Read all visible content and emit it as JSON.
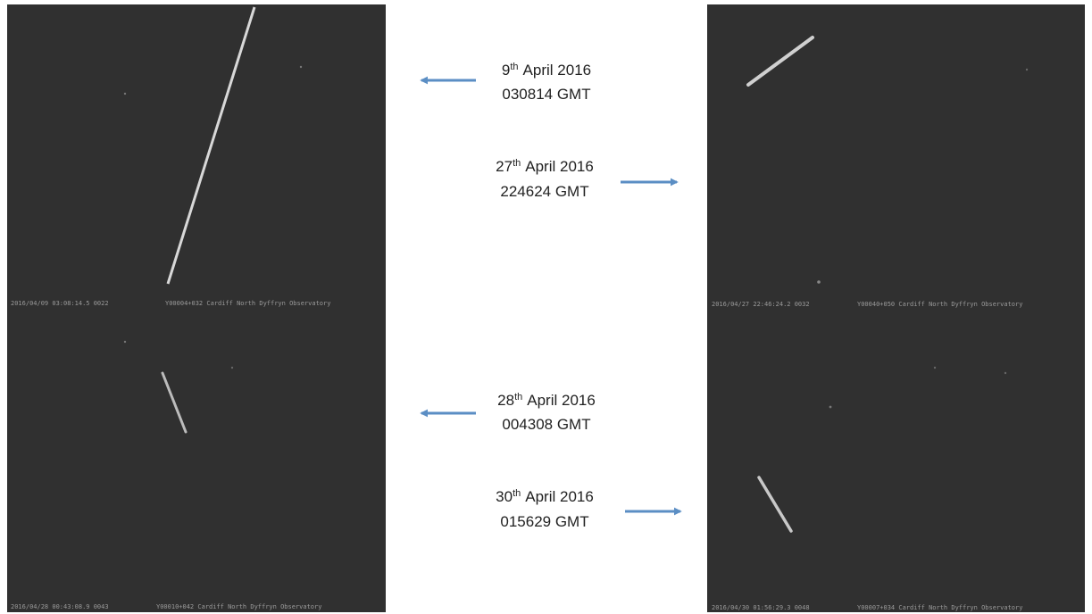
{
  "panels": [
    {
      "timestamp": "2016/04/09 03:08:14.5 0022",
      "station": "Y00004+032 Cardiff North Dyffryn Observatory"
    },
    {
      "timestamp": "2016/04/27 22:46:24.2 0032",
      "station": "Y00040+050 Cardiff North Dyffryn Observatory"
    },
    {
      "timestamp": "2016/04/28 00:43:08.9 0043",
      "station": "Y00010+042 Cardiff North Dyffryn Observatory"
    },
    {
      "timestamp": "2016/04/30 01:56:29.3 0048",
      "station": "Y00007+034 Cardiff North Dyffryn Observatory"
    }
  ],
  "labels": [
    {
      "day": "9",
      "suffix": "th",
      "month_year": "April 2016",
      "time": "030814 GMT"
    },
    {
      "day": "27",
      "suffix": "th",
      "month_year": "April 2016",
      "time": "224624 GMT"
    },
    {
      "day": "28",
      "suffix": "th",
      "month_year": "April 2016",
      "time": "004308 GMT"
    },
    {
      "day": "30",
      "suffix": "th",
      "month_year": "April 2016",
      "time": "015629 GMT"
    }
  ]
}
